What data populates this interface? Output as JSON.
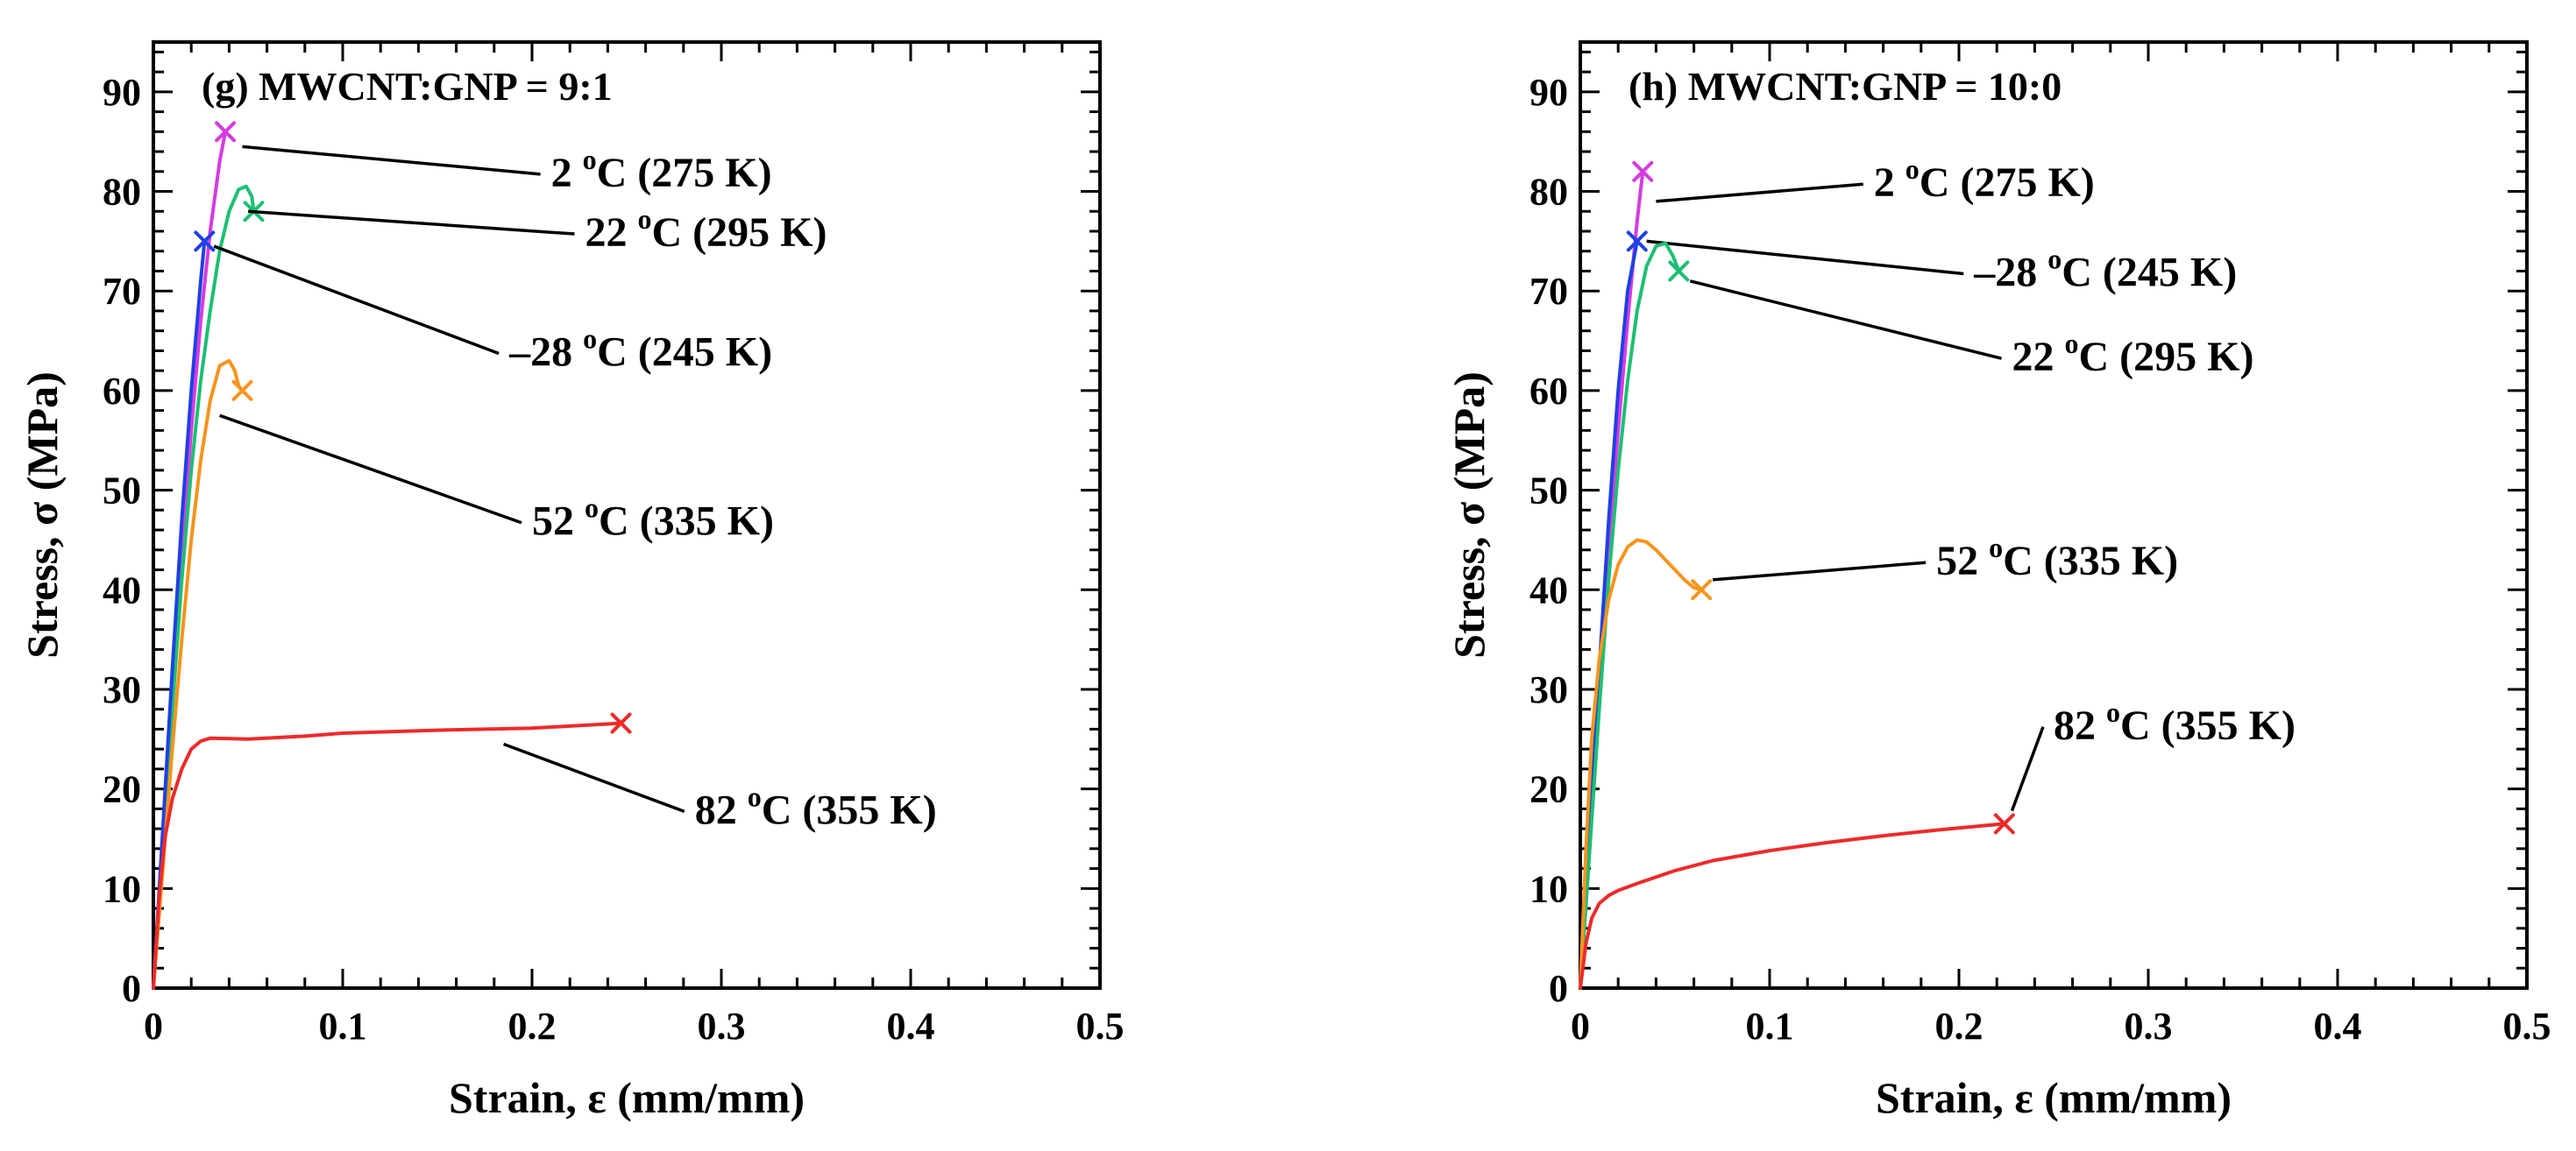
{
  "chart_data": [
    {
      "type": "line",
      "title": "(g) MWCNT:GNP = 9:1",
      "xlabel": "Strain, ε (mm/mm)",
      "ylabel": "Stress, σ (MPa)",
      "xlim": [
        0,
        0.5
      ],
      "ylim": [
        0,
        95
      ],
      "x_ticks": [
        0,
        0.1,
        0.2,
        0.3,
        0.4,
        0.5
      ],
      "x_tick_labels": [
        "0",
        "0.1",
        "0.2",
        "0.3",
        "0.4",
        "0.5"
      ],
      "y_ticks": [
        0,
        10,
        20,
        30,
        40,
        50,
        60,
        70,
        80,
        90
      ],
      "y_tick_labels": [
        "0",
        "10",
        "20",
        "30",
        "40",
        "50",
        "60",
        "70",
        "80",
        "90"
      ],
      "series": [
        {
          "name": "2 °C (275 K)",
          "color": "#d63be0",
          "x": [
            0,
            0.005,
            0.01,
            0.015,
            0.02,
            0.025,
            0.03,
            0.035,
            0.038
          ],
          "y": [
            0,
            15,
            30,
            44,
            56,
            67,
            76,
            83,
            86
          ],
          "failure": [
            0.038,
            86
          ],
          "label_text": "2 °C (275 K)",
          "label_pos": [
            0.21,
            80.5
          ],
          "leader_to": [
            0.047,
            84.5
          ]
        },
        {
          "name": "22 °C (295 K)",
          "color": "#1dbf73",
          "x": [
            0,
            0.005,
            0.01,
            0.015,
            0.02,
            0.025,
            0.03,
            0.035,
            0.04,
            0.045,
            0.049,
            0.052,
            0.053
          ],
          "y": [
            0,
            14,
            28,
            41,
            52,
            61,
            68,
            74,
            78,
            80.2,
            80.5,
            79.5,
            78
          ],
          "failure": [
            0.053,
            78
          ],
          "label_text": "22 °C (295 K)",
          "label_pos": [
            0.228,
            74.5
          ],
          "leader_to": [
            0.05,
            78
          ]
        },
        {
          "name": "–28 °C (245 K)",
          "color": "#1e40e6",
          "x": [
            0,
            0.005,
            0.01,
            0.015,
            0.02,
            0.025,
            0.027
          ],
          "y": [
            0,
            16,
            32,
            47,
            60,
            71,
            75
          ],
          "failure": [
            0.027,
            75
          ],
          "label_text": "–28 °C (245 K)",
          "label_pos": [
            0.188,
            62.5
          ],
          "leader_to": [
            0.032,
            74.5
          ]
        },
        {
          "name": "52 °C (335 K)",
          "color": "#f7941d",
          "x": [
            0,
            0.005,
            0.01,
            0.015,
            0.02,
            0.025,
            0.03,
            0.035,
            0.04,
            0.043,
            0.045,
            0.047
          ],
          "y": [
            0,
            12,
            24,
            35,
            45,
            53,
            59,
            62.5,
            63,
            62,
            60.5,
            60
          ],
          "failure": [
            0.047,
            60
          ],
          "label_text": "52 °C (335 K)",
          "label_pos": [
            0.2,
            45.5
          ],
          "leader_to": [
            0.035,
            57.5
          ]
        },
        {
          "name": "82 °C (355 K)",
          "color": "#ee2a2a",
          "x": [
            0,
            0.003,
            0.006,
            0.01,
            0.015,
            0.02,
            0.025,
            0.03,
            0.05,
            0.08,
            0.1,
            0.15,
            0.2,
            0.247
          ],
          "y": [
            0,
            9,
            15,
            19,
            22,
            24,
            24.8,
            25.1,
            25,
            25.3,
            25.6,
            25.9,
            26.1,
            26.6
          ],
          "failure": [
            0.247,
            26.6
          ],
          "label_text": "82 °C (355 K)",
          "label_pos": [
            0.286,
            16.5
          ],
          "leader_to": [
            0.185,
            24.5
          ]
        }
      ]
    },
    {
      "type": "line",
      "title": "(h) MWCNT:GNP = 10:0",
      "xlabel": "Strain, ε (mm/mm)",
      "ylabel": "Stress, σ (MPa)",
      "xlim": [
        0,
        0.5
      ],
      "ylim": [
        0,
        95
      ],
      "x_ticks": [
        0,
        0.1,
        0.2,
        0.3,
        0.4,
        0.5
      ],
      "x_tick_labels": [
        "0",
        "0.1",
        "0.2",
        "0.3",
        "0.4",
        "0.5"
      ],
      "y_ticks": [
        0,
        10,
        20,
        30,
        40,
        50,
        60,
        70,
        80,
        90
      ],
      "y_tick_labels": [
        "0",
        "10",
        "20",
        "30",
        "40",
        "50",
        "60",
        "70",
        "80",
        "90"
      ],
      "series": [
        {
          "name": "2 °C (275 K)",
          "color": "#d63be0",
          "x": [
            0,
            0.005,
            0.01,
            0.015,
            0.02,
            0.025,
            0.03,
            0.033
          ],
          "y": [
            0,
            15,
            30,
            44,
            56,
            67,
            77,
            82
          ],
          "failure": [
            0.033,
            82
          ],
          "label_text": "2 °C (275 K)",
          "label_pos": [
            0.155,
            79.5
          ],
          "leader_to": [
            0.04,
            79
          ]
        },
        {
          "name": "–28 °C (245 K)",
          "color": "#1e40e6",
          "x": [
            0,
            0.005,
            0.01,
            0.015,
            0.02,
            0.025,
            0.03
          ],
          "y": [
            0,
            16,
            32,
            47,
            60,
            70,
            75
          ],
          "failure": [
            0.03,
            75
          ],
          "label_text": "–28 °C (245 K)",
          "label_pos": [
            0.208,
            70.5
          ],
          "leader_to": [
            0.035,
            75
          ]
        },
        {
          "name": "22 °C (295 K)",
          "color": "#1dbf73",
          "x": [
            0,
            0.005,
            0.01,
            0.015,
            0.02,
            0.025,
            0.03,
            0.035,
            0.04,
            0.045,
            0.049,
            0.052
          ],
          "y": [
            0,
            14,
            28,
            41,
            52,
            61,
            68,
            72.5,
            74.5,
            74.8,
            73.5,
            72
          ],
          "failure": [
            0.052,
            72
          ],
          "label_text": "22 °C (295 K)",
          "label_pos": [
            0.228,
            62
          ],
          "leader_to": [
            0.058,
            71
          ]
        },
        {
          "name": "52 °C (335 K)",
          "color": "#f7941d",
          "x": [
            0,
            0.003,
            0.006,
            0.01,
            0.015,
            0.02,
            0.025,
            0.03,
            0.035,
            0.04,
            0.045,
            0.05,
            0.055,
            0.06,
            0.064
          ],
          "y": [
            0,
            14,
            25,
            33,
            39,
            42.5,
            44.3,
            45,
            44.8,
            44,
            43,
            42,
            41,
            40.2,
            40
          ],
          "failure": [
            0.064,
            40
          ],
          "label_text": "52 °C (335 K)",
          "label_pos": [
            0.188,
            41.5
          ],
          "leader_to": [
            0.07,
            41
          ]
        },
        {
          "name": "82 °C (355 K)",
          "color": "#ee2a2a",
          "x": [
            0,
            0.003,
            0.006,
            0.01,
            0.015,
            0.02,
            0.03,
            0.05,
            0.07,
            0.1,
            0.13,
            0.16,
            0.19,
            0.224
          ],
          "y": [
            0,
            4.5,
            7,
            8.5,
            9.3,
            9.8,
            10.5,
            11.8,
            12.8,
            13.8,
            14.6,
            15.3,
            15.9,
            16.5
          ],
          "failure": [
            0.224,
            16.5
          ],
          "label_text": "82 °C (355 K)",
          "label_pos": [
            0.25,
            25
          ],
          "leader_to": [
            0.228,
            17.8
          ]
        }
      ]
    }
  ]
}
